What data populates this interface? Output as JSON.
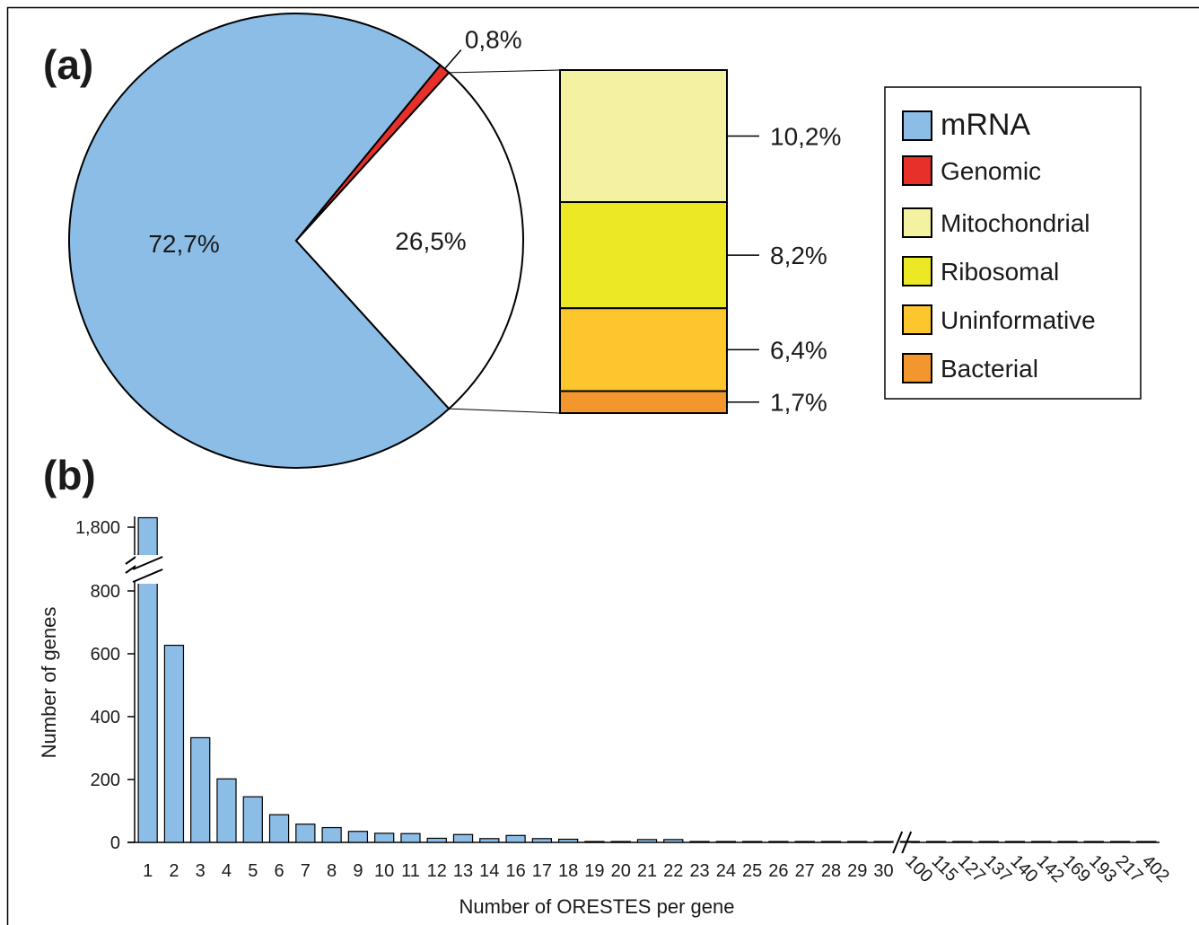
{
  "colors": {
    "mrna": "#8bbde6",
    "genomic": "#e8302a",
    "mitochondrial": "#f4f1a0",
    "ribosomal": "#ece826",
    "uninformative": "#fcc62c",
    "bacterial": "#f4962e",
    "bar": "#8bbde6",
    "frame": "#000000"
  },
  "chart_data": [
    {
      "panel": "(a)",
      "type": "pie",
      "slices": [
        {
          "key": "mrna",
          "name": "mRNA",
          "value": 72.7,
          "label": "72,7%"
        },
        {
          "key": "genomic",
          "name": "Genomic",
          "value": 0.8,
          "label": "0,8%"
        },
        {
          "key": "other",
          "name": "",
          "value": 26.5,
          "label": "26,5%"
        }
      ],
      "breakdown": {
        "of_slice": "other",
        "segments": [
          {
            "key": "mitochondrial",
            "name": "Mitochondrial",
            "value": 10.2,
            "label": "10,2%"
          },
          {
            "key": "ribosomal",
            "name": "Ribosomal",
            "value": 8.2,
            "label": "8,2%"
          },
          {
            "key": "uninformative",
            "name": "Uninformative",
            "value": 6.4,
            "label": "6,4%"
          },
          {
            "key": "bacterial",
            "name": "Bacterial",
            "value": 1.7,
            "label": "1,7%"
          }
        ]
      },
      "legend": {
        "placement": "right",
        "entries": [
          {
            "key": "mrna",
            "label": "mRNA"
          },
          {
            "key": "genomic",
            "label": "Genomic"
          },
          {
            "key": "mitochondrial",
            "label": "Mitochondrial"
          },
          {
            "key": "ribosomal",
            "label": "Ribosomal"
          },
          {
            "key": "uninformative",
            "label": "Uninformative"
          },
          {
            "key": "bacterial",
            "label": "Bacterial"
          }
        ]
      }
    },
    {
      "panel": "(b)",
      "type": "bar",
      "xlabel": "Number of ORESTES per gene",
      "ylabel": "Number of genes",
      "ylim": [
        0,
        1800
      ],
      "y_axis_break": {
        "from": 800,
        "to": 1800
      },
      "x_axis_break_after": "30",
      "y_ticks": [
        {
          "value": 0,
          "label": "0"
        },
        {
          "value": 200,
          "label": "200"
        },
        {
          "value": 400,
          "label": "400"
        },
        {
          "value": 600,
          "label": "600"
        },
        {
          "value": 800,
          "label": "800"
        },
        {
          "value": 1800,
          "label": "1,800"
        }
      ],
      "categories": [
        "1",
        "2",
        "3",
        "4",
        "5",
        "6",
        "7",
        "8",
        "9",
        "10",
        "11",
        "12",
        "13",
        "14",
        "16",
        "17",
        "18",
        "19",
        "20",
        "21",
        "22",
        "23",
        "24",
        "25",
        "26",
        "27",
        "28",
        "29",
        "30",
        "100",
        "115",
        "127",
        "137",
        "140",
        "142",
        "169",
        "193",
        "217",
        "402"
      ],
      "values": [
        1830,
        627,
        333,
        202,
        145,
        88,
        58,
        47,
        35,
        29,
        28,
        13,
        25,
        12,
        22,
        12,
        10,
        2,
        2,
        9,
        9,
        2,
        2,
        1,
        1,
        1,
        1,
        1,
        1,
        1,
        1,
        1,
        1,
        1,
        1,
        1,
        1,
        1,
        1
      ],
      "grid": false
    }
  ]
}
